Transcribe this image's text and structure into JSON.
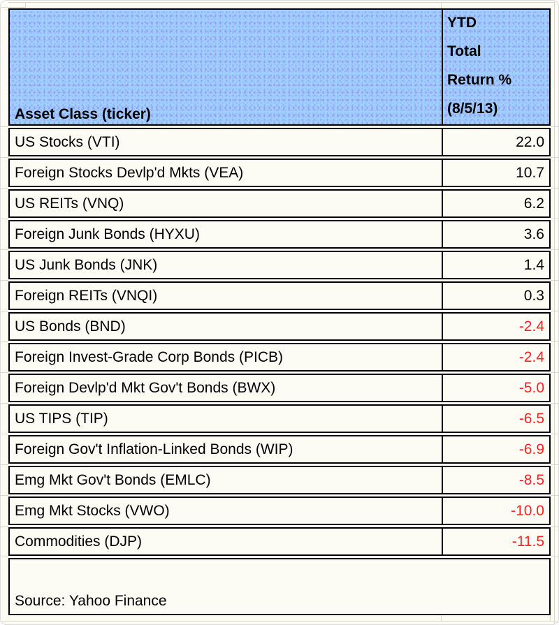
{
  "sheet": {
    "header": {
      "asset_col_label": "Asset Class (ticker)",
      "return_col_lines": [
        "YTD",
        "Total",
        "Return %",
        "(8/5/13)"
      ]
    },
    "rows": [
      {
        "label": "US Stocks (VTI)",
        "value": "22.0"
      },
      {
        "label": "Foreign Stocks Devlp'd Mkts (VEA)",
        "value": "10.7"
      },
      {
        "label": "US REITs (VNQ)",
        "value": "6.2"
      },
      {
        "label": "Foreign Junk Bonds (HYXU)",
        "value": "3.6"
      },
      {
        "label": "US Junk Bonds (JNK)",
        "value": "1.4"
      },
      {
        "label": "Foreign REITs (VNQI)",
        "value": "0.3"
      },
      {
        "label": "US Bonds (BND)",
        "value": "-2.4"
      },
      {
        "label": "Foreign Invest-Grade Corp Bonds (PICB)",
        "value": "-2.4"
      },
      {
        "label": "Foreign Devlp'd Mkt Gov't Bonds (BWX)",
        "value": "-5.0"
      },
      {
        "label": "US TIPS (TIP)",
        "value": "-6.5"
      },
      {
        "label": "Foreign Gov't Inflation-Linked Bonds (WIP)",
        "value": "-6.9"
      },
      {
        "label": "Emg Mkt Gov't Bonds (EMLC)",
        "value": "-8.5"
      },
      {
        "label": "Emg Mkt Stocks (VWO)",
        "value": "-10.0"
      },
      {
        "label": "Commodities (DJP)",
        "value": "-11.5"
      }
    ],
    "footer": {
      "source": "Source: Yahoo Finance"
    }
  },
  "colors": {
    "header_bg": "#9ECFFF",
    "header_dot": "#97A0F0",
    "negative_value": "#FF2121",
    "positive_value": "#000000",
    "cell_border": "#000000",
    "gridline": "#D9D9CC",
    "background": "#FCFCF5"
  }
}
